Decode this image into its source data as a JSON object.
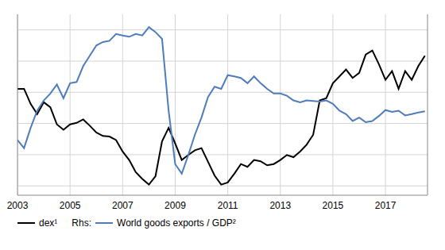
{
  "chart_data": {
    "type": "line",
    "x": [
      2003,
      2003.25,
      2003.5,
      2003.75,
      2004,
      2004.25,
      2004.5,
      2004.75,
      2005,
      2005.25,
      2005.5,
      2005.75,
      2006,
      2006.25,
      2006.5,
      2006.75,
      2007,
      2007.25,
      2007.5,
      2007.75,
      2008,
      2008.25,
      2008.5,
      2008.75,
      2009,
      2009.25,
      2009.5,
      2009.75,
      2010,
      2010.25,
      2010.5,
      2010.75,
      2011,
      2011.25,
      2011.5,
      2011.75,
      2012,
      2012.25,
      2012.5,
      2012.75,
      2013,
      2013.25,
      2013.5,
      2013.75,
      2014,
      2014.25,
      2014.5,
      2014.75,
      2015,
      2015.25,
      2015.5,
      2015.75,
      2016,
      2016.25,
      2016.5,
      2016.75,
      2017,
      2017.25,
      2017.5,
      2017.75,
      2018,
      2018.25,
      2018.5
    ],
    "series": [
      {
        "name": "dex¹",
        "color": "#000000",
        "values": [
          3.11,
          3.11,
          2.63,
          2.3,
          2.68,
          2.52,
          1.97,
          1.8,
          1.97,
          2.02,
          2.13,
          1.93,
          1.71,
          1.6,
          1.58,
          1.47,
          1.1,
          0.83,
          0.44,
          0.22,
          0.04,
          0.31,
          1.43,
          1.86,
          1.36,
          0.83,
          0.99,
          1.14,
          1.21,
          0.77,
          0.33,
          0.04,
          0.11,
          0.39,
          0.7,
          0.61,
          0.83,
          0.79,
          0.66,
          0.7,
          0.83,
          0.99,
          0.92,
          1.1,
          1.32,
          1.64,
          2.74,
          2.81,
          3.29,
          3.51,
          3.73,
          3.46,
          3.62,
          4.21,
          4.34,
          3.9,
          3.4,
          3.68,
          3.11,
          3.68,
          3.4,
          3.84,
          4.17
        ]
      },
      {
        "name": "World goods exports / GDP²",
        "legend_prefix": "Rhs:",
        "color": "#4f7cba",
        "axis": "y2",
        "values": [
          1.47,
          1.21,
          1.86,
          2.41,
          2.74,
          2.96,
          3.25,
          2.81,
          3.29,
          3.33,
          3.84,
          4.17,
          4.5,
          4.61,
          4.65,
          4.87,
          4.82,
          4.78,
          4.87,
          4.82,
          5.09,
          4.93,
          4.71,
          2.41,
          0.7,
          0.39,
          0.99,
          1.64,
          2.19,
          2.85,
          3.18,
          3.11,
          3.55,
          3.51,
          3.46,
          3.29,
          3.51,
          3.29,
          3.11,
          2.96,
          2.96,
          2.89,
          2.74,
          2.68,
          2.74,
          2.72,
          2.7,
          2.74,
          2.63,
          2.41,
          2.3,
          2.08,
          2.19,
          2.04,
          2.08,
          2.24,
          2.43,
          2.37,
          2.41,
          2.26,
          2.3,
          2.35,
          2.39
        ]
      }
    ],
    "xlim": [
      2003,
      2018.6
    ],
    "xticks": [
      2003,
      2005,
      2007,
      2009,
      2011,
      2013,
      2015,
      2017
    ],
    "ylim": [
      -0.3,
      5.5
    ],
    "yticks": [
      0,
      1,
      2,
      3,
      4,
      5
    ],
    "y2lim": [
      -0.3,
      5.5
    ],
    "y2ticks": [
      0,
      1,
      2,
      3,
      4,
      5
    ],
    "grid": true,
    "tick_labels": "x"
  }
}
